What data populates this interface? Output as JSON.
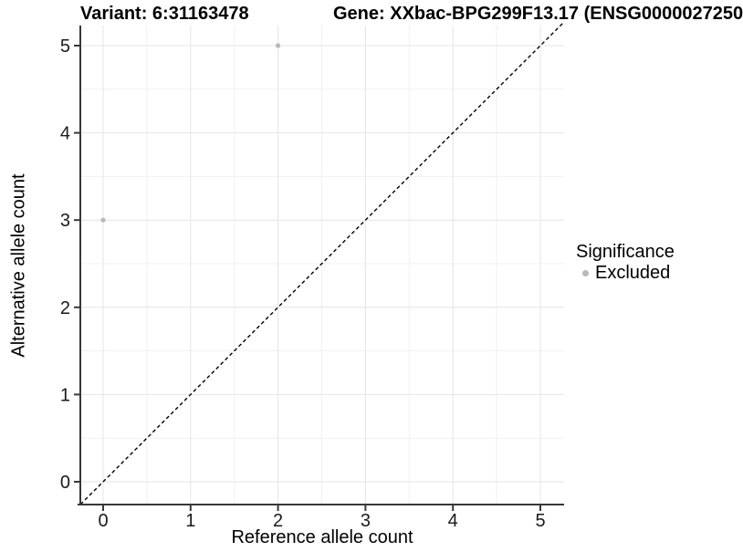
{
  "titles": {
    "variant": "Variant: 6:31163478",
    "gene": "Gene: XXbac-BPG299F13.17 (ENSG0000027250"
  },
  "chart_data": {
    "type": "scatter",
    "title_left": "Variant: 6:31163478",
    "title_right": "Gene: XXbac-BPG299F13.17 (ENSG0000027250",
    "xlabel": "Reference allele count",
    "ylabel": "Alternative allele count",
    "x_ticks": [
      0,
      1,
      2,
      3,
      4,
      5
    ],
    "y_ticks": [
      0,
      1,
      2,
      3,
      4,
      5
    ],
    "minor_ticks": [
      0.5,
      1.5,
      2.5,
      3.5,
      4.5
    ],
    "xlim": [
      -0.26,
      5.27
    ],
    "ylim": [
      -0.26,
      5.27
    ],
    "series": [
      {
        "name": "Excluded",
        "color": "#b9b9b9",
        "points": [
          [
            0,
            3
          ],
          [
            2,
            5
          ]
        ]
      }
    ],
    "reference_line": {
      "type": "identity",
      "style": "dashed",
      "from": [
        -0.26,
        -0.26
      ],
      "to": [
        5.27,
        5.27
      ]
    },
    "grid": {
      "major": true,
      "minor": true
    },
    "legend": {
      "title": "Significance",
      "position": "right",
      "items": [
        "Excluded"
      ]
    }
  },
  "colors": {
    "point": "#b9b9b9",
    "grid_major": "#e4e4e4",
    "grid_minor": "#f1f1f1",
    "axis": "#383838",
    "tick_text": "#1a1a1a",
    "identity_line": "#000000",
    "background": "#ffffff"
  }
}
